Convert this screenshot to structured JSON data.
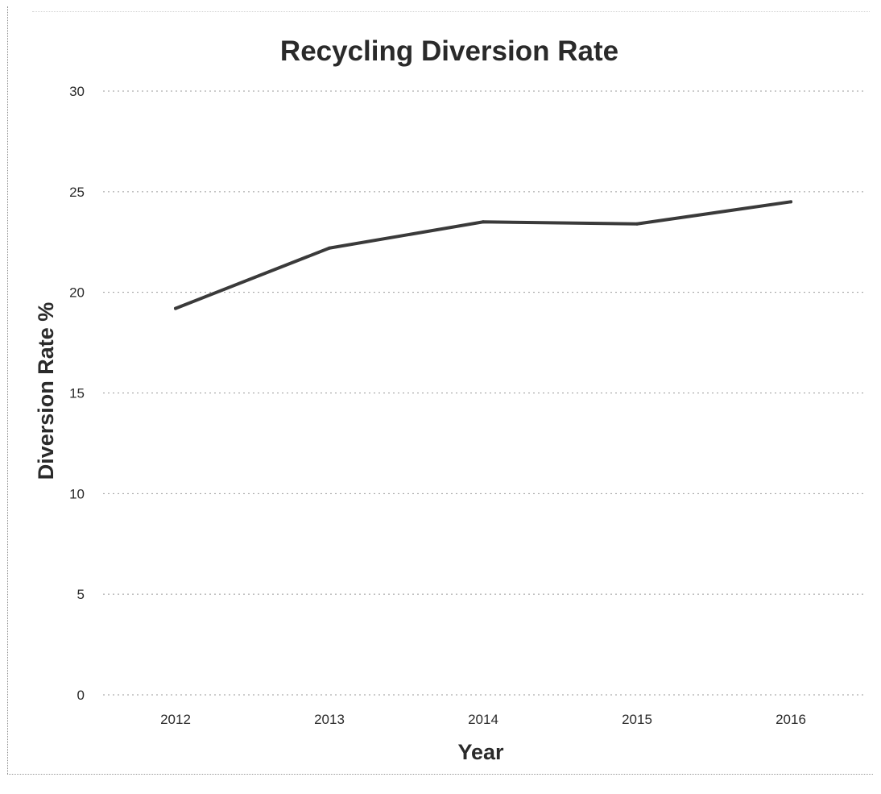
{
  "chart_data": {
    "type": "line",
    "title": "Recycling Diversion Rate",
    "xlabel": "Year",
    "ylabel": "Diversion Rate %",
    "categories": [
      "2012",
      "2013",
      "2014",
      "2015",
      "2016"
    ],
    "series": [
      {
        "values": [
          19.2,
          22.2,
          23.5,
          23.4,
          24.5
        ]
      }
    ],
    "ylim": [
      0,
      30
    ],
    "yticks": [
      0,
      5,
      10,
      15,
      20,
      25,
      30
    ],
    "grid": true,
    "legend": "none",
    "colors": {
      "line": "#3a3a3a",
      "grid": "#9a9a9a",
      "text": "#2a2a2a"
    }
  }
}
